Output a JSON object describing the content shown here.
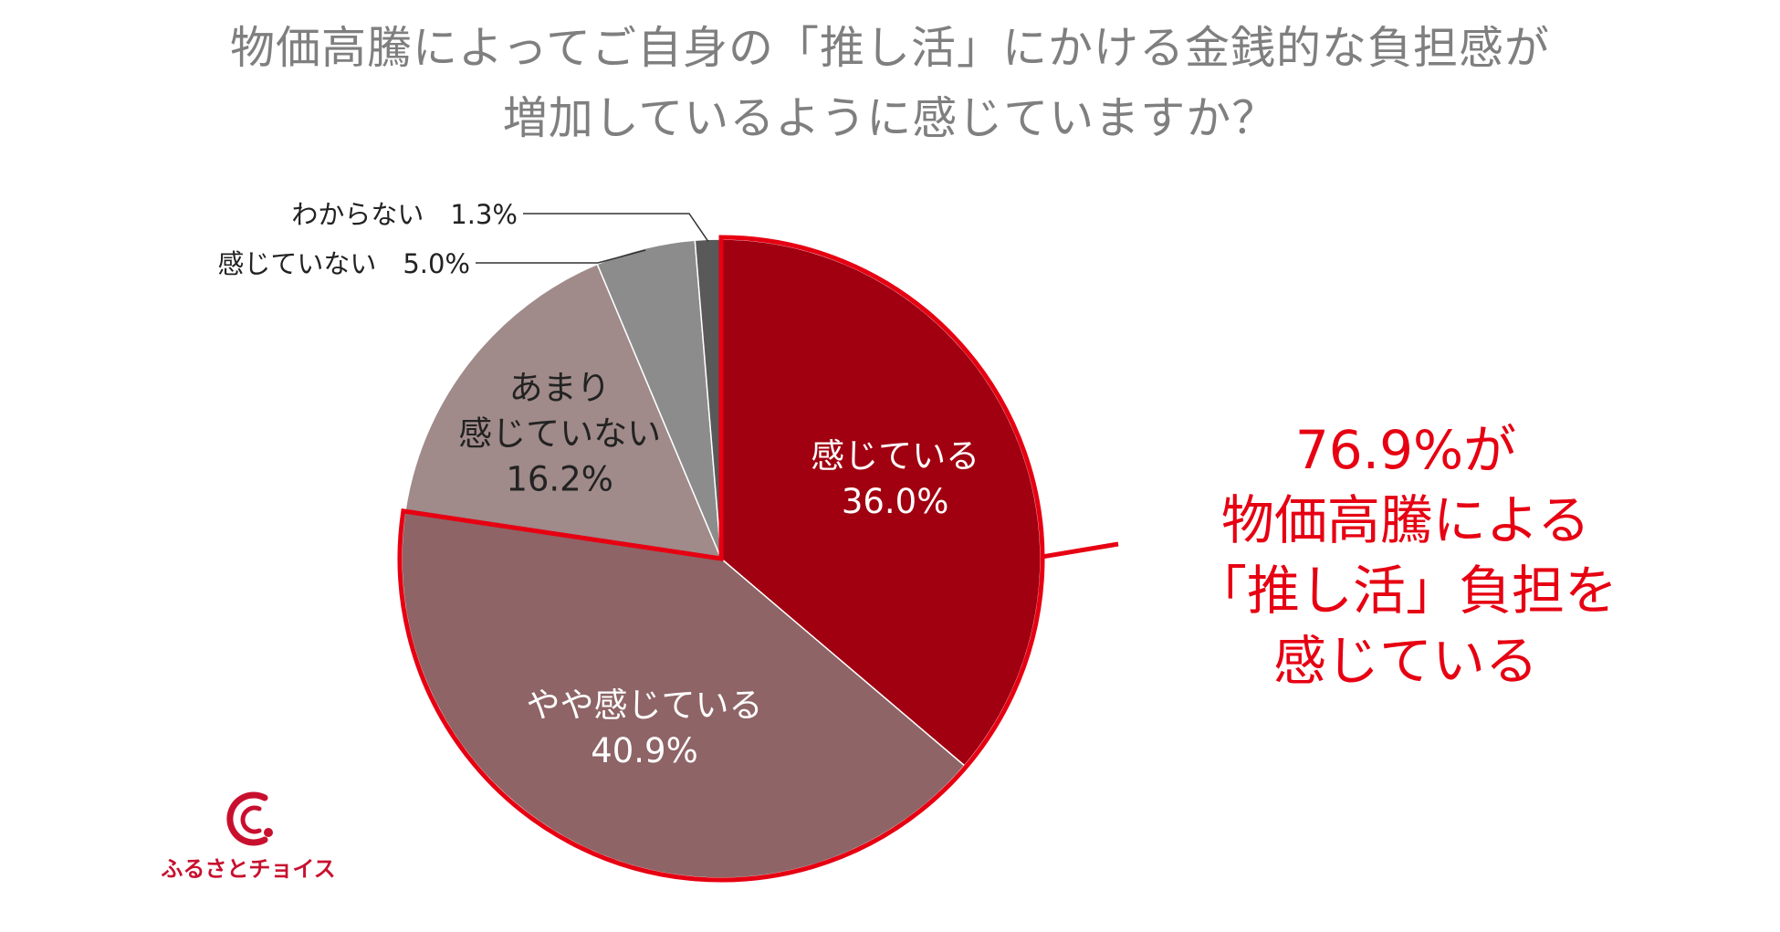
{
  "title": {
    "line1": "物価高騰によってご自身の「推し活」にかける金銭的な負担感が",
    "line2": "増加しているように感じていますか？"
  },
  "chart_data": {
    "type": "pie",
    "start_angle_deg": 0,
    "direction": "clockwise",
    "slices": [
      {
        "label_lines": [
          "感じている"
        ],
        "value": 36.0,
        "value_label": "36.0%",
        "color": "#a00010",
        "label_color": "#ffffff",
        "label_position": "inside",
        "highlighted": true
      },
      {
        "label_lines": [
          "やや感じている"
        ],
        "value": 40.9,
        "value_label": "40.9%",
        "color": "#8e6466",
        "label_color": "#ffffff",
        "label_position": "inside",
        "highlighted": true
      },
      {
        "label_lines": [
          "あまり",
          "感じていない"
        ],
        "value": 16.2,
        "value_label": "16.2%",
        "color": "#a08a8a",
        "label_color": "#222222",
        "label_position": "inside",
        "highlighted": false
      },
      {
        "label_lines": [
          "感じていない"
        ],
        "value": 5.0,
        "value_label": "5.0%",
        "color": "#8c8c8c",
        "label_color": "#222222",
        "label_position": "outside-leader",
        "highlighted": false
      },
      {
        "label_lines": [
          "わからない"
        ],
        "value": 1.3,
        "value_label": "1.3%",
        "color": "#595959",
        "label_color": "#222222",
        "label_position": "outside-leader",
        "highlighted": false
      }
    ],
    "highlight_color": "#e60012",
    "legend": "none"
  },
  "callout": {
    "line1": "76.9%が",
    "line2": "物価高騰による",
    "line3": "「推し活」負担を",
    "line4": "感じている",
    "color": "#e60012"
  },
  "logo": {
    "text": "ふるさとチョイス",
    "icon": "furusato-choice-logo-icon",
    "color": "#c8102e"
  }
}
